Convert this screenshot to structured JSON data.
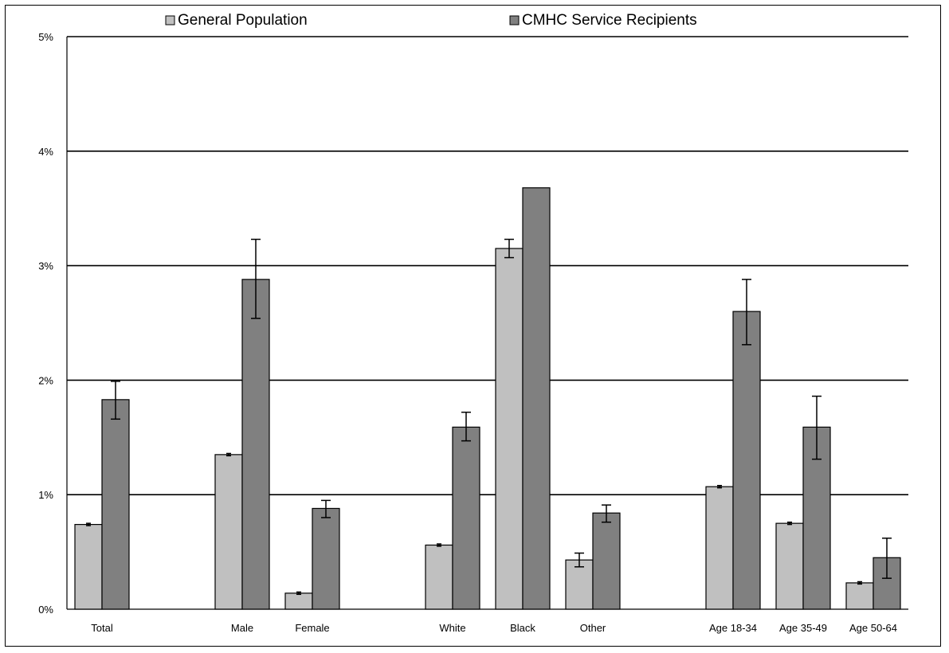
{
  "chart_data": {
    "type": "bar",
    "title": "",
    "xlabel": "",
    "ylabel": "",
    "ylim": [
      0,
      5
    ],
    "yticks": [
      {
        "value": 0,
        "label": "0%"
      },
      {
        "value": 1,
        "label": "1%"
      },
      {
        "value": 2,
        "label": "2%"
      },
      {
        "value": 3,
        "label": "3%"
      },
      {
        "value": 4,
        "label": "4%"
      },
      {
        "value": 5,
        "label": "5%"
      }
    ],
    "grid": true,
    "legend_position": "top",
    "categories": [
      "Total",
      "Male",
      "Female",
      "White",
      "Black",
      "Other",
      "Age 18-34",
      "Age 35-49",
      "Age 50-64"
    ],
    "groups": [
      [
        "Total"
      ],
      [
        "Male",
        "Female"
      ],
      [
        "White",
        "Black",
        "Other"
      ],
      [
        "Age 18-34",
        "Age 35-49",
        "Age 50-64"
      ]
    ],
    "series": [
      {
        "name": "General Population",
        "color": "#c0c0c0",
        "values": [
          0.74,
          1.35,
          0.14,
          0.56,
          3.15,
          0.43,
          1.07,
          0.75,
          0.23
        ],
        "error_low": [
          0.73,
          1.34,
          0.13,
          0.55,
          3.07,
          0.37,
          1.06,
          0.74,
          0.22
        ],
        "error_high": [
          0.75,
          1.36,
          0.15,
          0.57,
          3.23,
          0.49,
          1.08,
          0.76,
          0.24
        ]
      },
      {
        "name": "CMHC Service Recipients",
        "color": "#808080",
        "values": [
          1.83,
          2.88,
          0.88,
          1.59,
          3.68,
          0.84,
          2.6,
          1.59,
          0.45
        ],
        "error_low": [
          1.66,
          2.54,
          0.8,
          1.47,
          null,
          0.76,
          2.31,
          1.31,
          0.27
        ],
        "error_high": [
          1.99,
          3.23,
          0.95,
          1.72,
          null,
          0.91,
          2.88,
          1.86,
          0.62
        ]
      }
    ]
  }
}
